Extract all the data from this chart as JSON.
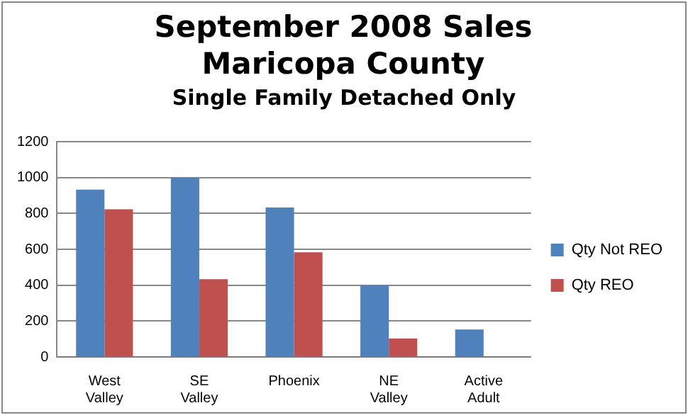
{
  "chart_data": {
    "type": "bar",
    "title": "September 2008 Sales Maricopa County",
    "subtitle": "Single Family Detached Only",
    "categories": [
      "West Valley",
      "SE Valley",
      "Phoenix",
      "NE Valley",
      "Active Adult"
    ],
    "series": [
      {
        "name": "Qty Not REO",
        "color": "#4f81bd",
        "values": [
          933,
          1000,
          833,
          400,
          153
        ]
      },
      {
        "name": "Qty REO",
        "color": "#c0504d",
        "values": [
          823,
          433,
          583,
          103,
          0
        ]
      }
    ],
    "ylim": [
      0,
      1200
    ],
    "yticks": [
      0,
      200,
      400,
      600,
      800,
      1000,
      1200
    ],
    "grid": "y",
    "legend": "right"
  }
}
